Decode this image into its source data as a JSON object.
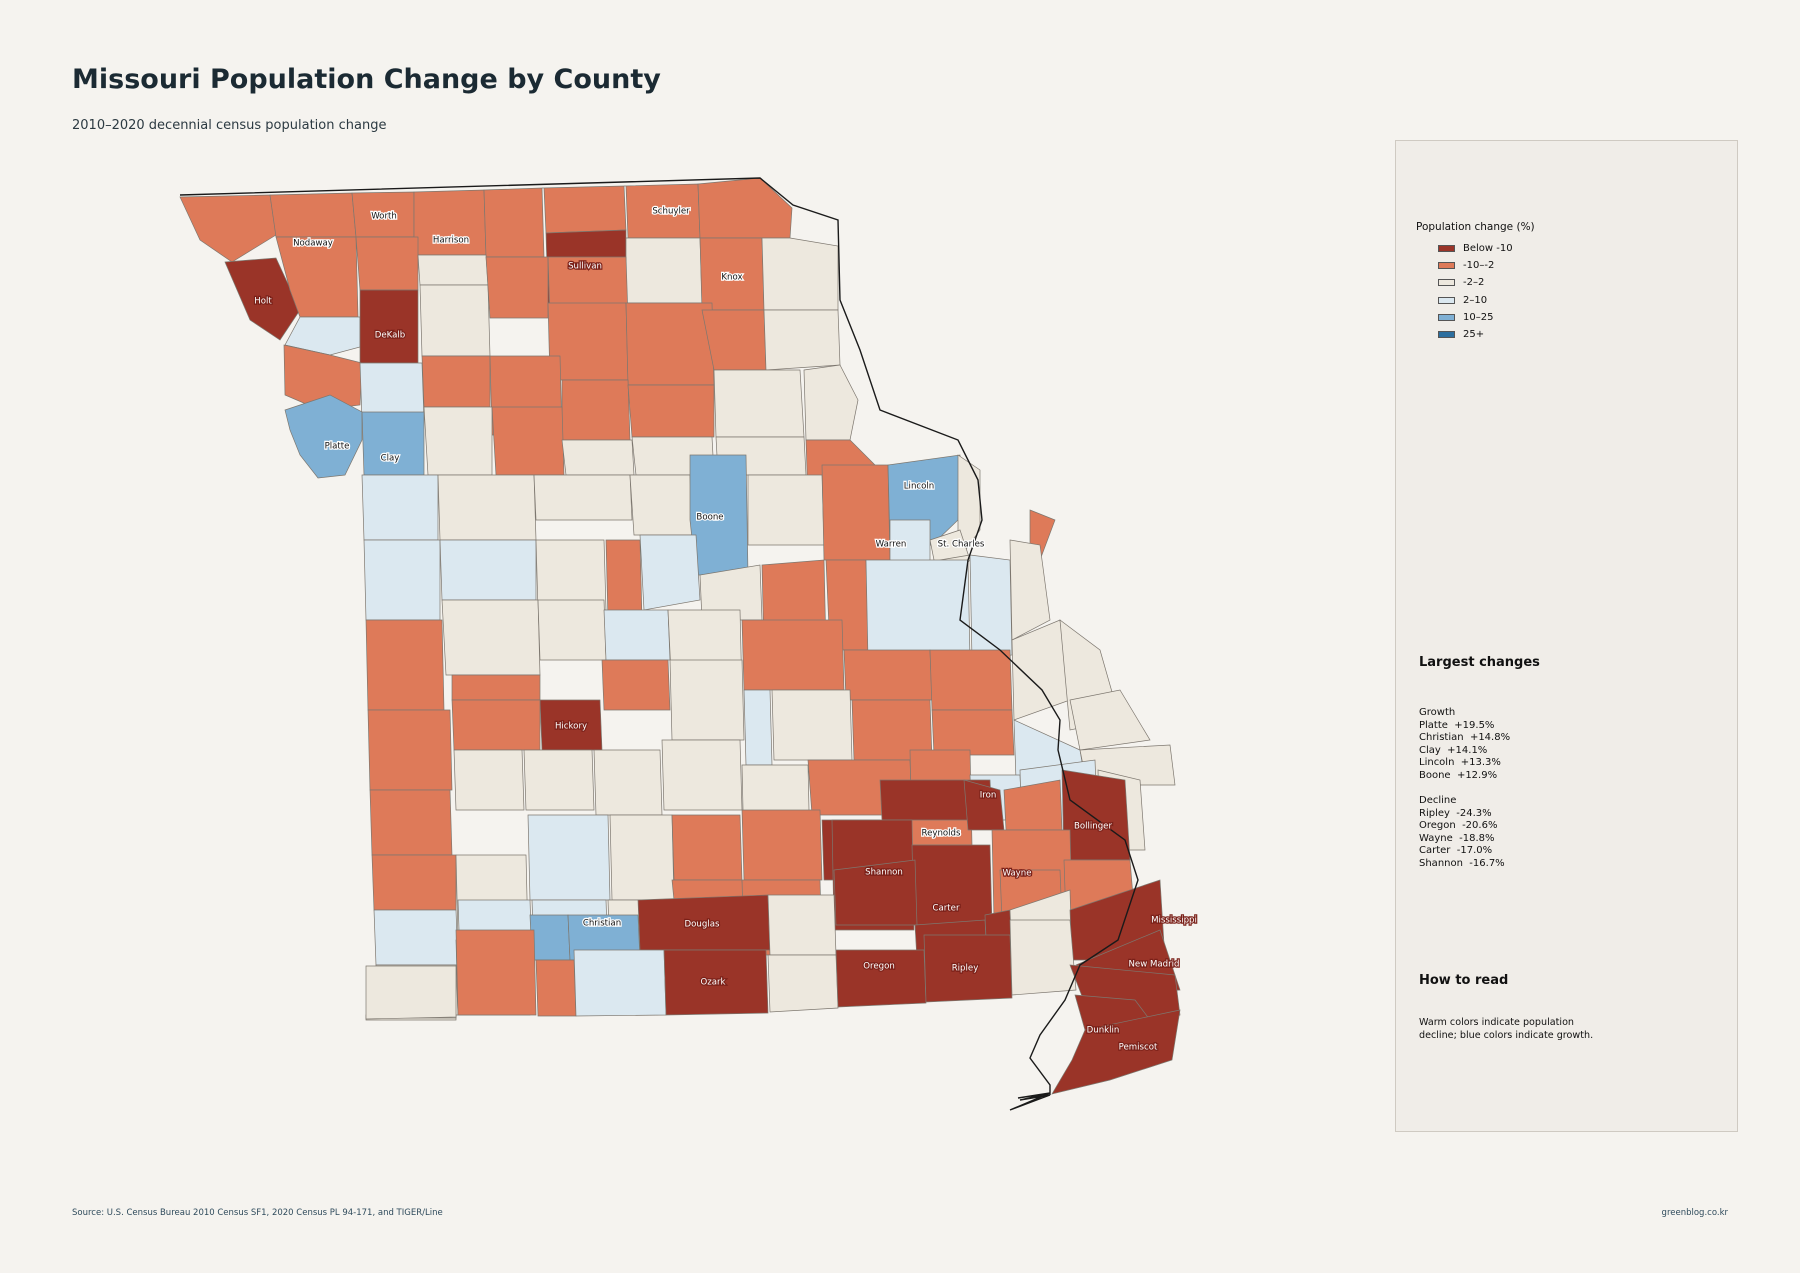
{
  "title": "Missouri Population Change by County",
  "subtitle": "2010–2020 decennial census population change",
  "legend": {
    "title": "Population change (%)",
    "items": [
      {
        "label": "Below -10",
        "color": "#9a3428"
      },
      {
        "label": "-10–-2",
        "color": "#de7a59"
      },
      {
        "label": "-2–2",
        "color": "#ede8de"
      },
      {
        "label": "2–10",
        "color": "#dbe8f0"
      },
      {
        "label": "10–25",
        "color": "#7fb0d4"
      },
      {
        "label": "25+",
        "color": "#2c6e9e"
      }
    ]
  },
  "largest_changes": {
    "title": "Largest changes",
    "growth_heading": "Growth",
    "growth": [
      "Platte  +19.5%",
      "Christian  +14.8%",
      "Clay  +14.1%",
      "Lincoln  +13.3%",
      "Boone  +12.9%"
    ],
    "decline_heading": "Decline",
    "decline": [
      "Ripley  -24.3%",
      "Oregon  -20.6%",
      "Wayne  -18.8%",
      "Carter  -17.0%",
      "Shannon  -16.7%"
    ]
  },
  "how_to_read": {
    "title": "How to read",
    "text": "Warm colors indicate population decline; blue colors indicate growth."
  },
  "footer": {
    "source": "Source: U.S. Census Bureau 2010 Census SF1, 2020 Census PL 94-171, and TIGER/Line",
    "credit": "greenblog.co.kr"
  },
  "county_labels": [
    {
      "name": "Worth",
      "class": "-10–-2"
    },
    {
      "name": "Schuyler",
      "class": "-10–-2"
    },
    {
      "name": "Nodaway",
      "class": "-10–-2"
    },
    {
      "name": "Harrison",
      "class": "-10–-2"
    },
    {
      "name": "Sullivan",
      "class": "Below -10"
    },
    {
      "name": "Knox",
      "class": "-10–-2"
    },
    {
      "name": "Holt",
      "class": "Below -10"
    },
    {
      "name": "DeKalb",
      "class": "Below -10"
    },
    {
      "name": "Platte",
      "class": "10–25"
    },
    {
      "name": "Clay",
      "class": "10–25"
    },
    {
      "name": "Lincoln",
      "class": "10–25"
    },
    {
      "name": "Boone",
      "class": "10–25"
    },
    {
      "name": "Warren",
      "class": "2–10"
    },
    {
      "name": "St. Charles",
      "class": "10–25"
    },
    {
      "name": "Hickory",
      "class": "Below -10"
    },
    {
      "name": "Iron",
      "class": "Below -10"
    },
    {
      "name": "Bollinger",
      "class": "Below -10"
    },
    {
      "name": "Reynolds",
      "class": "-10–-2"
    },
    {
      "name": "Shannon",
      "class": "Below -10"
    },
    {
      "name": "Wayne",
      "class": "Below -10"
    },
    {
      "name": "Carter",
      "class": "Below -10"
    },
    {
      "name": "Christian",
      "class": "10–25"
    },
    {
      "name": "Douglas",
      "class": "Below -10"
    },
    {
      "name": "Mississippi",
      "class": "Below -10"
    },
    {
      "name": "New Madrid",
      "class": "Below -10"
    },
    {
      "name": "Oregon",
      "class": "Below -10"
    },
    {
      "name": "Ripley",
      "class": "Below -10"
    },
    {
      "name": "Ozark",
      "class": "Below -10"
    },
    {
      "name": "Dunklin",
      "class": "Below -10"
    },
    {
      "name": "Pemiscot",
      "class": "Below -10"
    }
  ]
}
